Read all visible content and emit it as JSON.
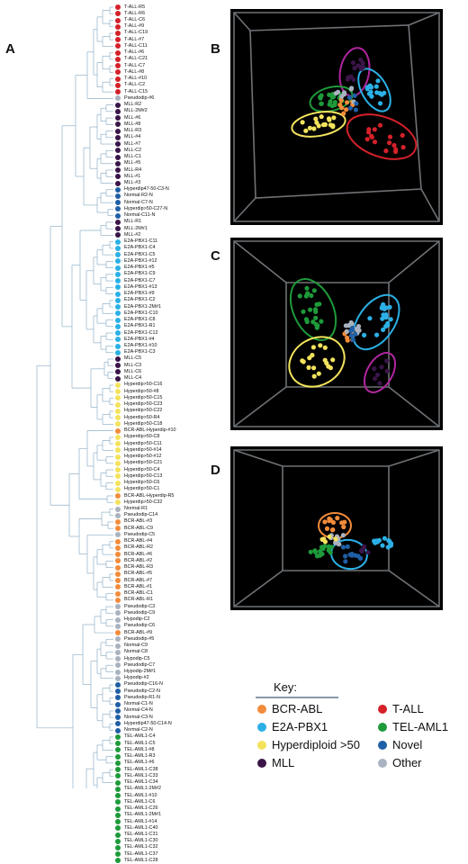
{
  "figure": {
    "panels": {
      "a": "A",
      "b": "B",
      "c": "C",
      "d": "D"
    },
    "key_title": "Key:",
    "key_items": [
      {
        "label": "BCR-ABL",
        "color": "#f28c3b",
        "icon": "orange-dot"
      },
      {
        "label": "T-ALL",
        "color": "#d4212a",
        "icon": "red-dot"
      },
      {
        "label": "E2A-PBX1",
        "color": "#2bb0e6",
        "icon": "cyan-dot"
      },
      {
        "label": "TEL-AML1",
        "color": "#1e9a3a",
        "icon": "green-dot"
      },
      {
        "label": "Hyperdiploid >50",
        "color": "#f3e35c",
        "icon": "yellow-dot"
      },
      {
        "label": "Novel",
        "color": "#1f5fa6",
        "icon": "blue-dot"
      },
      {
        "label": "MLL",
        "color": "#3a1548",
        "icon": "purple-dot"
      },
      {
        "label": "Other",
        "color": "#a9b3c0",
        "icon": "gray-dot"
      }
    ],
    "colors": {
      "T-ALL": "#d4212a",
      "MLL": "#3a1548",
      "E2A-PBX1": "#2bb0e6",
      "Hyperdiploid": "#f3e35c",
      "BCR-ABL": "#f28c3b",
      "TEL-AML1": "#1e9a3a",
      "Novel": "#1f5fa6",
      "Other": "#a9b3c0",
      "ellipse_magenta": "#b0269e",
      "dendrogram": "#8fb0c8"
    },
    "samples": [
      [
        "T-ALL-R5",
        "T-ALL"
      ],
      [
        "T-ALL-R6",
        "T-ALL"
      ],
      [
        "T-ALL-C6",
        "T-ALL"
      ],
      [
        "T-ALL-#9",
        "T-ALL"
      ],
      [
        "T-ALL-C19",
        "T-ALL"
      ],
      [
        "T-ALL-#7",
        "T-ALL"
      ],
      [
        "T-ALL-C11",
        "T-ALL"
      ],
      [
        "T-ALL-#6",
        "T-ALL"
      ],
      [
        "T-ALL-C21",
        "T-ALL"
      ],
      [
        "T-ALL-C7",
        "T-ALL"
      ],
      [
        "T-ALL-#8",
        "T-ALL"
      ],
      [
        "T-ALL-#10",
        "T-ALL"
      ],
      [
        "T-ALL-C2",
        "T-ALL"
      ],
      [
        "T-ALL-C15",
        "T-ALL"
      ],
      [
        "Pseudodip-#6",
        "Other"
      ],
      [
        "MLL-R2",
        "MLL"
      ],
      [
        "MLL-2M#2",
        "MLL"
      ],
      [
        "MLL-#6",
        "MLL"
      ],
      [
        "MLL-#8",
        "MLL"
      ],
      [
        "MLL-R3",
        "MLL"
      ],
      [
        "MLL-#4",
        "MLL"
      ],
      [
        "MLL-#7",
        "MLL"
      ],
      [
        "MLL-C2",
        "MLL"
      ],
      [
        "MLL-C1",
        "MLL"
      ],
      [
        "MLL-#5",
        "MLL"
      ],
      [
        "MLL-R4",
        "MLL"
      ],
      [
        "MLL-#1",
        "MLL"
      ],
      [
        "MLL-#3",
        "MLL"
      ],
      [
        "Hyperdip47-50-C3-N",
        "Novel"
      ],
      [
        "Normal-R2-N",
        "Novel"
      ],
      [
        "Normal-C7-N",
        "Novel"
      ],
      [
        "Hyperdip>50-C27-N",
        "Novel"
      ],
      [
        "Normal-C11-N",
        "Novel"
      ],
      [
        "MLL-R1",
        "MLL"
      ],
      [
        "MLL-2M#1",
        "MLL"
      ],
      [
        "MLL-#2",
        "MLL"
      ],
      [
        "E2A-PBX1-C11",
        "E2A-PBX1"
      ],
      [
        "E2A-PBX1-C4",
        "E2A-PBX1"
      ],
      [
        "E2A-PBX1-C5",
        "E2A-PBX1"
      ],
      [
        "E2A-PBX1-#12",
        "E2A-PBX1"
      ],
      [
        "E2A-PBX1-#5",
        "E2A-PBX1"
      ],
      [
        "E2A-PBX1-C9",
        "E2A-PBX1"
      ],
      [
        "E2A-PBX1-C7",
        "E2A-PBX1"
      ],
      [
        "E2A-PBX1-#13",
        "E2A-PBX1"
      ],
      [
        "E2A-PBX1-#9",
        "E2A-PBX1"
      ],
      [
        "E2A-PBX1-C2",
        "E2A-PBX1"
      ],
      [
        "E2A-PBX1-2M#1",
        "E2A-PBX1"
      ],
      [
        "E2A-PBX1-C10",
        "E2A-PBX1"
      ],
      [
        "E2A-PBX1-C8",
        "E2A-PBX1"
      ],
      [
        "E2A-PBX1-R1",
        "E2A-PBX1"
      ],
      [
        "E2A-PBX1-C12",
        "E2A-PBX1"
      ],
      [
        "E2A-PBX1-#4",
        "E2A-PBX1"
      ],
      [
        "E2A-PBX1-#10",
        "E2A-PBX1"
      ],
      [
        "E2A-PBX1-C3",
        "E2A-PBX1"
      ],
      [
        "MLL-C5",
        "MLL"
      ],
      [
        "MLL-C3",
        "MLL"
      ],
      [
        "MLL-C6",
        "MLL"
      ],
      [
        "MLL-C4",
        "MLL"
      ],
      [
        "Hyperdip>50-C16",
        "Hyperdiploid"
      ],
      [
        "Hyperdip>50-#8",
        "Hyperdiploid"
      ],
      [
        "Hyperdip>50-C15",
        "Hyperdiploid"
      ],
      [
        "Hyperdip>50-C23",
        "Hyperdiploid"
      ],
      [
        "Hyperdip>50-C22",
        "Hyperdiploid"
      ],
      [
        "Hyperdip>50-R4",
        "Hyperdiploid"
      ],
      [
        "Hyperdip>50-C18",
        "Hyperdiploid"
      ],
      [
        "BCR-ABL-Hyperdip-#10",
        "BCR-ABL"
      ],
      [
        "Hyperdip>50-C8",
        "Hyperdiploid"
      ],
      [
        "Hyperdip>50-C11",
        "Hyperdiploid"
      ],
      [
        "Hyperdip>50-#14",
        "Hyperdiploid"
      ],
      [
        "Hyperdip>50-#12",
        "Hyperdiploid"
      ],
      [
        "Hyperdip>50-C21",
        "Hyperdiploid"
      ],
      [
        "Hyperdip>50-C4",
        "Hyperdiploid"
      ],
      [
        "Hyperdip>50-C13",
        "Hyperdiploid"
      ],
      [
        "Hyperdip>50-C6",
        "Hyperdiploid"
      ],
      [
        "Hyperdip>50-C1",
        "Hyperdiploid"
      ],
      [
        "BCR-ABL-Hyperdip-R5",
        "BCR-ABL"
      ],
      [
        "Hyperdip>50-C32",
        "Hyperdiploid"
      ],
      [
        "Normal-R1",
        "Other"
      ],
      [
        "Pseudodip-C14",
        "Other"
      ],
      [
        "BCR-ABL-#3",
        "BCR-ABL"
      ],
      [
        "BCR-ABL-C9",
        "BCR-ABL"
      ],
      [
        "Pseudodip-C5",
        "Other"
      ],
      [
        "BCR-ABL-#4",
        "BCR-ABL"
      ],
      [
        "BCR-ABL-R2",
        "BCR-ABL"
      ],
      [
        "BCR-ABL-#6",
        "BCR-ABL"
      ],
      [
        "BCR-ABL-#2",
        "BCR-ABL"
      ],
      [
        "BCR-ABL-R3",
        "BCR-ABL"
      ],
      [
        "BCR-ABL-#5",
        "BCR-ABL"
      ],
      [
        "BCR-ABL-#7",
        "BCR-ABL"
      ],
      [
        "BCR-ABL-#1",
        "BCR-ABL"
      ],
      [
        "BCR-ABL-C1",
        "BCR-ABL"
      ],
      [
        "BCR-ABL-R1",
        "BCR-ABL"
      ],
      [
        "Pseudodip-C3",
        "Other"
      ],
      [
        "Pseudodip-C9",
        "Other"
      ],
      [
        "Hypodip-C2",
        "Other"
      ],
      [
        "Pseudodip-C6",
        "Other"
      ],
      [
        "BCR-ABL-#9",
        "BCR-ABL"
      ],
      [
        "Pseudodip-#5",
        "Other"
      ],
      [
        "Normal-C9",
        "Other"
      ],
      [
        "Normal-C8",
        "Other"
      ],
      [
        "Hypodip-C5",
        "Other"
      ],
      [
        "Pseudodip-C7",
        "Other"
      ],
      [
        "Hypodip-2M#1",
        "Other"
      ],
      [
        "Hypodip-#2",
        "Other"
      ],
      [
        "Pseudodip-C16-N",
        "Novel"
      ],
      [
        "Pseudodip-C2-N",
        "Novel"
      ],
      [
        "Pseudodip-R1-N",
        "Novel"
      ],
      [
        "Normal-C1-N",
        "Novel"
      ],
      [
        "Normal-C4-N",
        "Novel"
      ],
      [
        "Normal-C3-N",
        "Novel"
      ],
      [
        "Hyperdip47-50-C14-N",
        "Novel"
      ],
      [
        "Normal-C2-N",
        "Novel"
      ],
      [
        "TEL-AML1-C4",
        "TEL-AML1"
      ],
      [
        "TEL-AML1-C5",
        "TEL-AML1"
      ],
      [
        "TEL-AML1-#8",
        "TEL-AML1"
      ],
      [
        "TEL-AML1-R3",
        "TEL-AML1"
      ],
      [
        "TEL-AML1-#6",
        "TEL-AML1"
      ],
      [
        "TEL-AML1-C38",
        "TEL-AML1"
      ],
      [
        "TEL-AML1-C33",
        "TEL-AML1"
      ],
      [
        "TEL-AML1-C34",
        "TEL-AML1"
      ],
      [
        "TEL-AML1-2M#2",
        "TEL-AML1"
      ],
      [
        "TEL-AML1-#10",
        "TEL-AML1"
      ],
      [
        "TEL-AML1-C6",
        "TEL-AML1"
      ],
      [
        "TEL-AML1-C26",
        "TEL-AML1"
      ],
      [
        "TEL-AML1-2M#1",
        "TEL-AML1"
      ],
      [
        "TEL-AML1-#14",
        "TEL-AML1"
      ],
      [
        "TEL-AML1-C40",
        "TEL-AML1"
      ],
      [
        "TEL-AML1-C31",
        "TEL-AML1"
      ],
      [
        "TEL-AML1-C30",
        "TEL-AML1"
      ],
      [
        "TEL-AML1-C32",
        "TEL-AML1"
      ],
      [
        "TEL-AML1-C37",
        "TEL-AML1"
      ],
      [
        "TEL-AML1-C28",
        "TEL-AML1"
      ]
    ]
  }
}
